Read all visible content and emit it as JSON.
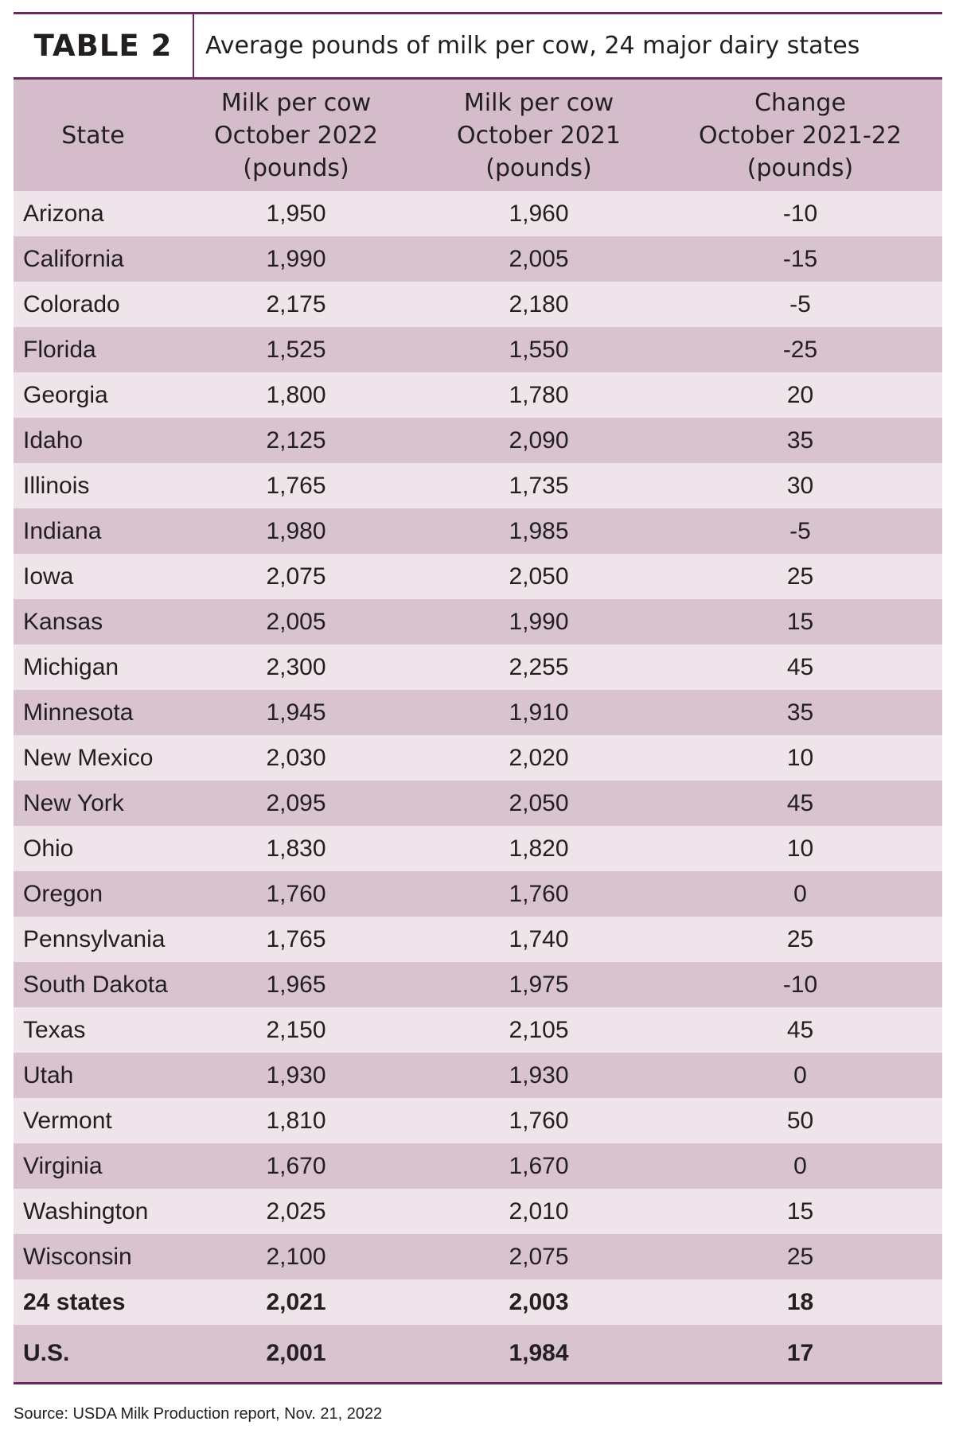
{
  "chart_data": {
    "type": "table",
    "title_number": "TABLE 2",
    "title": "Average pounds of milk per cow, 24 major dairy states",
    "columns": [
      {
        "label": "State"
      },
      {
        "label": "Milk per cow October 2022 (pounds)",
        "lines": [
          "Milk per cow",
          "October 2022",
          "(pounds)"
        ]
      },
      {
        "label": "Milk per cow October 2021 (pounds)",
        "lines": [
          "Milk per cow",
          "October 2021",
          "(pounds)"
        ]
      },
      {
        "label": "Change October 2021-22 (pounds)",
        "lines": [
          "Change",
          "October 2021-22",
          "(pounds)"
        ]
      }
    ],
    "rows": [
      [
        "Arizona",
        "1,950",
        "1,960",
        "-10"
      ],
      [
        "California",
        "1,990",
        "2,005",
        "-15"
      ],
      [
        "Colorado",
        "2,175",
        "2,180",
        "-5"
      ],
      [
        "Florida",
        "1,525",
        "1,550",
        "-25"
      ],
      [
        "Georgia",
        "1,800",
        "1,780",
        "20"
      ],
      [
        "Idaho",
        "2,125",
        "2,090",
        "35"
      ],
      [
        "Illinois",
        "1,765",
        "1,735",
        "30"
      ],
      [
        "Indiana",
        "1,980",
        "1,985",
        "-5"
      ],
      [
        "Iowa",
        "2,075",
        "2,050",
        "25"
      ],
      [
        "Kansas",
        "2,005",
        "1,990",
        "15"
      ],
      [
        "Michigan",
        "2,300",
        "2,255",
        "45"
      ],
      [
        "Minnesota",
        "1,945",
        "1,910",
        "35"
      ],
      [
        "New Mexico",
        "2,030",
        "2,020",
        "10"
      ],
      [
        "New York",
        "2,095",
        "2,050",
        "45"
      ],
      [
        "Ohio",
        "1,830",
        "1,820",
        "10"
      ],
      [
        "Oregon",
        "1,760",
        "1,760",
        "0"
      ],
      [
        "Pennsylvania",
        "1,765",
        "1,740",
        "25"
      ],
      [
        "South Dakota",
        "1,965",
        "1,975",
        "-10"
      ],
      [
        "Texas",
        "2,150",
        "2,105",
        "45"
      ],
      [
        "Utah",
        "1,930",
        "1,930",
        "0"
      ],
      [
        "Vermont",
        "1,810",
        "1,760",
        "50"
      ],
      [
        "Virginia",
        "1,670",
        "1,670",
        "0"
      ],
      [
        "Washington",
        "2,025",
        "2,010",
        "15"
      ],
      [
        "Wisconsin",
        "2,100",
        "2,075",
        "25"
      ]
    ],
    "totals": [
      [
        "24 states",
        "2,021",
        "2,003",
        "18"
      ],
      [
        "U.S.",
        "2,001",
        "1,984",
        "17"
      ]
    ]
  },
  "source": "Source: USDA Milk Production report, Nov. 21, 2022",
  "colors": {
    "rule": "#6b2a5e",
    "header_bg": "#d4bcca",
    "row_light": "#efe4ea",
    "row_dark": "#d8c3cf"
  }
}
